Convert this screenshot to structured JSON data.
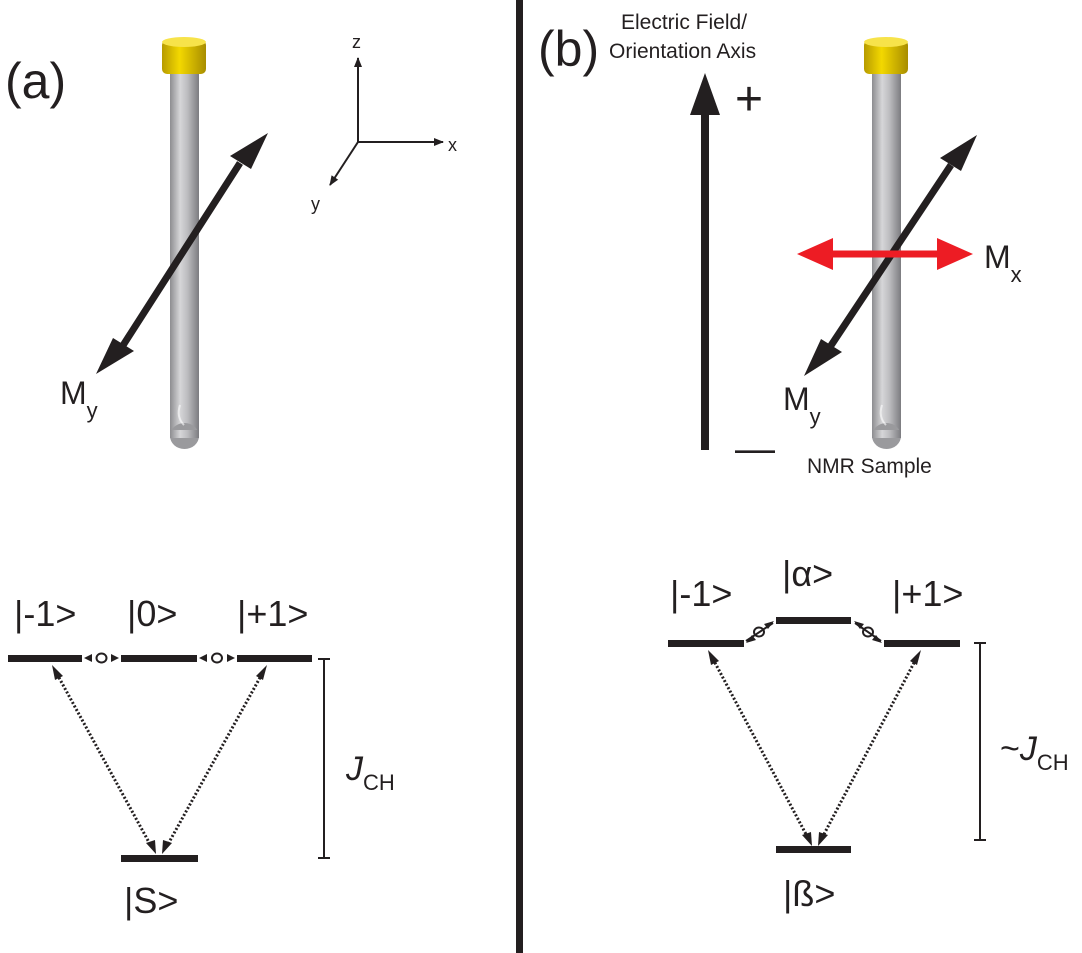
{
  "panel_a": {
    "label": "(a)",
    "axes": {
      "z": "z",
      "x": "x",
      "y": "y"
    },
    "moment": {
      "base": "M",
      "sub": "y"
    },
    "states": {
      "left": "|-1>",
      "middle": "|0>",
      "right": "|+1>",
      "ground": "|S>"
    },
    "coupling": {
      "base": "J",
      "sub": "CH"
    }
  },
  "panel_b": {
    "label": "(b)",
    "field_label_line1": "Electric Field/",
    "field_label_line2": "Orientation Axis",
    "plus": "+",
    "minus": "—",
    "moment_x": {
      "base": "M",
      "sub": "x"
    },
    "moment_y": {
      "base": "M",
      "sub": "y"
    },
    "sample_label": "NMR Sample",
    "states": {
      "left": "|-1>",
      "middle": "|α>",
      "right": "|+1>",
      "ground": "|ß>"
    },
    "coupling": {
      "prefix": "~",
      "base": "J",
      "sub": "CH"
    }
  },
  "colors": {
    "ink": "#231f20",
    "red_arrow": "#ed1c24",
    "cap": "#e8c800",
    "tube": "#b9b9bc"
  }
}
